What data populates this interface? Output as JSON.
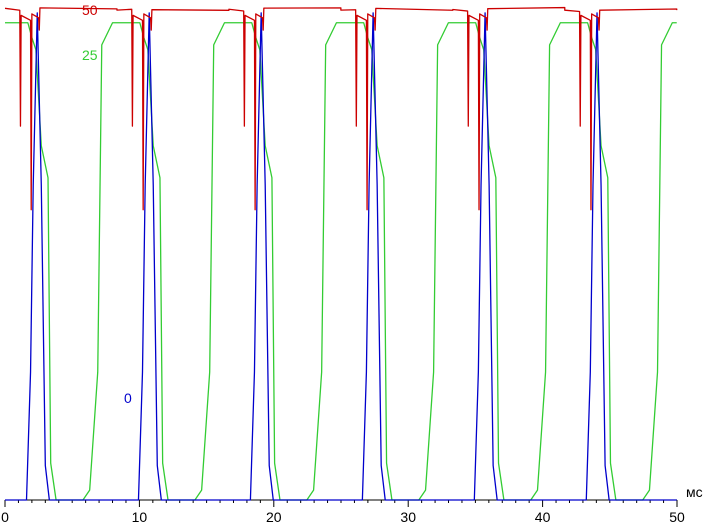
{
  "chart_data": {
    "type": "line",
    "title": "",
    "xlabel": "мс",
    "ylabel": "",
    "xlim": [
      0,
      50
    ],
    "ylim": [
      0,
      100
    ],
    "x_ticks": [
      0,
      10,
      20,
      30,
      40,
      50
    ],
    "x_tick_labels": [
      "0",
      "10",
      "20",
      "30",
      "40",
      "50"
    ],
    "grid": false,
    "period_ms": 8.33,
    "series": [
      {
        "name": "50",
        "color": "#cc0000",
        "description_values": [
          {
            "x": 0.0,
            "y": 99.8
          },
          {
            "x": 1.1,
            "y": 99.5
          },
          {
            "x": 1.15,
            "y": 76.0
          },
          {
            "x": 1.2,
            "y": 98.5
          },
          {
            "x": 1.9,
            "y": 97.5
          },
          {
            "x": 1.95,
            "y": 59.0
          },
          {
            "x": 2.0,
            "y": 98.8
          },
          {
            "x": 2.5,
            "y": 98.0
          },
          {
            "x": 2.55,
            "y": 95.5
          },
          {
            "x": 2.6,
            "y": 99.8
          },
          {
            "x": 8.33,
            "y": 99.8
          }
        ]
      },
      {
        "name": "25",
        "color": "#33cc33",
        "description_values": [
          {
            "x": 0.0,
            "y": 97.0
          },
          {
            "x": 1.7,
            "y": 97.0
          },
          {
            "x": 2.0,
            "y": 94.0
          },
          {
            "x": 2.3,
            "y": 91.5
          },
          {
            "x": 2.7,
            "y": 72.0
          },
          {
            "x": 3.2,
            "y": 65.5
          },
          {
            "x": 3.4,
            "y": 7.5
          },
          {
            "x": 3.8,
            "y": 0.0
          },
          {
            "x": 5.8,
            "y": 0.0
          },
          {
            "x": 6.3,
            "y": 2.0
          },
          {
            "x": 6.9,
            "y": 26.0
          },
          {
            "x": 7.2,
            "y": 92.5
          },
          {
            "x": 8.0,
            "y": 97.0
          },
          {
            "x": 8.33,
            "y": 97.0
          }
        ]
      },
      {
        "name": "0",
        "color": "#0000cc",
        "description_values": [
          {
            "x": 0.0,
            "y": 0.0
          },
          {
            "x": 1.6,
            "y": 0.0
          },
          {
            "x": 1.9,
            "y": 26.0
          },
          {
            "x": 2.1,
            "y": 64.0
          },
          {
            "x": 2.4,
            "y": 99.0
          },
          {
            "x": 2.7,
            "y": 64.0
          },
          {
            "x": 3.0,
            "y": 7.0
          },
          {
            "x": 3.3,
            "y": 0.0
          },
          {
            "x": 8.33,
            "y": 0.0
          }
        ]
      }
    ]
  }
}
